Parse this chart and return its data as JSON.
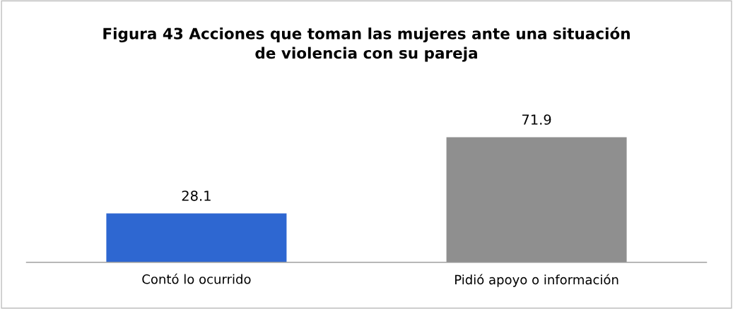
{
  "chart_data": {
    "type": "bar",
    "title": "Figura 43 Acciones que toman las mujeres ante una situación\nde violencia con su pareja",
    "categories": [
      "Contó lo ocurrido",
      "Pidió apoyo o información"
    ],
    "values": [
      28.1,
      71.9
    ],
    "colors": [
      "#2e67d1",
      "#8f8f8f"
    ],
    "data_labels": true,
    "grid": false,
    "legend": false
  }
}
